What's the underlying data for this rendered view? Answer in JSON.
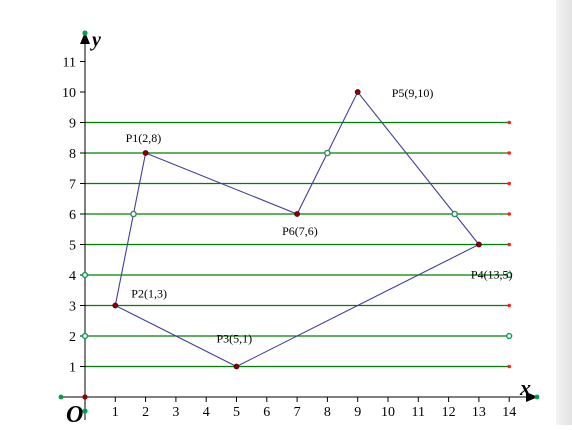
{
  "diagram": {
    "title": "",
    "axes": {
      "x_label": "x",
      "y_label": "y",
      "origin_label": "O",
      "x_range": [
        0,
        14
      ],
      "y_range": [
        0,
        11
      ],
      "x_ticks": [
        1,
        2,
        3,
        4,
        5,
        6,
        7,
        8,
        9,
        10,
        11,
        12,
        13,
        14
      ],
      "y_ticks": [
        1,
        2,
        3,
        4,
        5,
        6,
        7,
        8,
        9,
        10,
        11
      ],
      "horizontal_scan_lines": [
        1,
        2,
        3,
        4,
        5,
        6,
        7,
        8,
        9
      ],
      "scan_line_end_x": 14
    },
    "polygon": {
      "vertices": [
        {
          "id": "P1",
          "label": "P1(2,8)",
          "x": 2,
          "y": 8
        },
        {
          "id": "P2",
          "label": "P2(1,3)",
          "x": 1,
          "y": 3
        },
        {
          "id": "P3",
          "label": "P3(5,1)",
          "x": 5,
          "y": 1
        },
        {
          "id": "P4",
          "label": "P4(13,5)",
          "x": 13,
          "y": 5
        },
        {
          "id": "P5",
          "label": "P5(9,10)",
          "x": 9,
          "y": 10
        },
        {
          "id": "P6",
          "label": "P6(7,6)",
          "x": 7,
          "y": 6
        }
      ],
      "intersection_points": [
        {
          "x": 1.6,
          "y": 6
        },
        {
          "x": 8,
          "y": 8
        },
        {
          "x": 12.2,
          "y": 6
        }
      ],
      "axis_points": [
        {
          "x": 0,
          "y": 4
        },
        {
          "x": 0,
          "y": 2
        },
        {
          "x": 14,
          "y": 4
        },
        {
          "x": 14,
          "y": 2
        }
      ]
    },
    "colors": {
      "axis": "#000000",
      "scan_line": "#008000",
      "polygon_edge": "#4040a0",
      "vertex": "#8b0000",
      "intersection": "#2e8b57",
      "scan_end": "#ff2020",
      "axis_marker": "#00a050"
    }
  }
}
